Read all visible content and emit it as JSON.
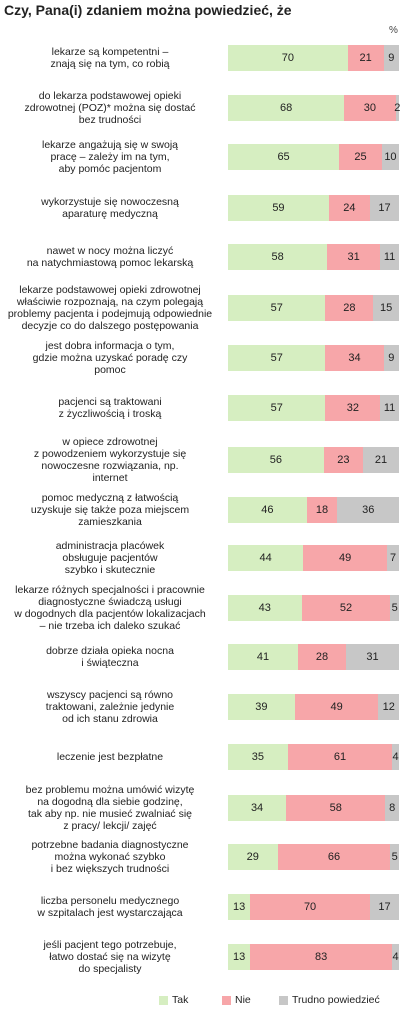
{
  "title": "Czy, Pana(i) zdaniem można powiedzieć, że",
  "percent_sign": "%",
  "colors": {
    "tak": "#d6eec1",
    "nie": "#f7a6a9",
    "trudno": "#c7c7c7"
  },
  "chart_data": {
    "type": "bar",
    "orientation": "horizontal",
    "stacked": true,
    "unit": "%",
    "categories": [
      "lekarze są kompetentni –\nznają się na tym, co robią",
      "do lekarza  podstawowej opieki\nzdrowotnej (POZ)* można się dostać\nbez trudności",
      "lekarze angażują się w swoją\npracę – zależy im na tym,\naby pomóc pacjentom",
      "wykorzystuje się nowoczesną\naparaturę medyczną",
      "nawet w nocy można liczyć\nna natychmiastową pomoc lekarską",
      "lekarze podstawowej opieki zdrowotnej\nwłaściwie rozpoznają, na czym polegają\nproblemy pacjenta i podejmują odpowiednie\ndecyzje  co do dalszego postępowania",
      "jest dobra informacja o tym,\ngdzie można uzyskać poradę czy\npomoc",
      "pacjenci są traktowani\nz życzliwością i troską",
      "w opiece zdrowotnej\nz powodzeniem wykorzystuje się\nnowoczesne rozwiązania, np.\ninternet",
      "pomoc medyczną z łatwością\nuzyskuje się także poza miejscem\nzamieszkania",
      "administracja placówek\nobsługuje pacjentów\nszybko i skutecznie",
      "lekarze różnych specjalności i pracownie\ndiagnostyczne świadczą usługi\nw dogodnych dla pacjentów lokalizacjach\n– nie trzeba ich daleko szukać",
      "dobrze działa opieka nocna\ni świąteczna",
      "wszyscy pacjenci są równo\ntraktowani, zależnie jedynie\nod ich stanu zdrowia",
      "leczenie jest bezpłatne",
      "bez problemu można umówić wizytę\nna dogodną dla siebie godzinę,\ntak aby np. nie musieć zwalniać się\nz pracy/ lekcji/ zajęć",
      "potrzebne badania diagnostyczne\nmożna wykonać szybko\ni bez większych trudności",
      "liczba personelu medycznego\nw szpitalach jest wystarczająca",
      "jeśli pacjent tego potrzebuje,\nłatwo dostać się na wizytę\ndo specjalisty"
    ],
    "series": [
      {
        "name": "Tak",
        "values": [
          70,
          68,
          65,
          59,
          58,
          57,
          57,
          57,
          56,
          46,
          44,
          43,
          41,
          39,
          35,
          34,
          29,
          13,
          13
        ]
      },
      {
        "name": "Nie",
        "values": [
          21,
          30,
          25,
          24,
          31,
          28,
          34,
          32,
          23,
          18,
          49,
          52,
          28,
          49,
          61,
          58,
          66,
          70,
          83
        ]
      },
      {
        "name": "Trudno powiedzieć",
        "values": [
          9,
          2,
          10,
          17,
          11,
          15,
          9,
          11,
          21,
          36,
          7,
          5,
          31,
          12,
          4,
          8,
          5,
          17,
          4
        ]
      }
    ],
    "xlim": [
      0,
      100
    ],
    "legend_position": "bottom-right",
    "grid": false
  }
}
